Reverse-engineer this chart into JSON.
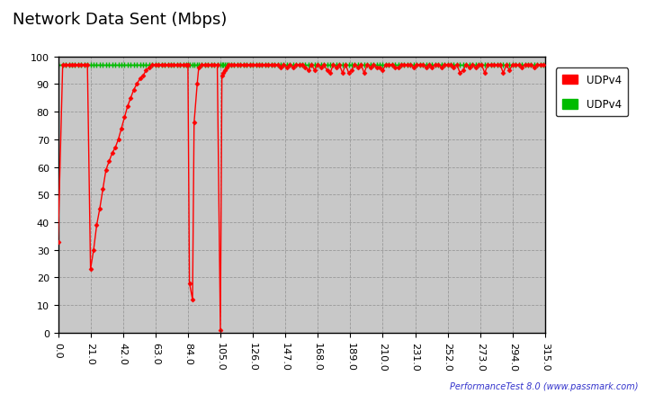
{
  "title": "Network Data Sent (Mbps)",
  "xlim": [
    0.0,
    315.0
  ],
  "ylim": [
    0,
    100
  ],
  "xticks": [
    0.0,
    21.0,
    42.0,
    63.0,
    84.0,
    105.0,
    126.0,
    147.0,
    168.0,
    189.0,
    210.0,
    231.0,
    252.0,
    273.0,
    294.0,
    315.0
  ],
  "yticks": [
    0,
    10,
    20,
    30,
    40,
    50,
    60,
    70,
    80,
    90,
    100
  ],
  "outer_bg": "#ffffff",
  "plot_bg_color": "#c8c8c8",
  "grid_color": "#aaaaaa",
  "watermark": "PerformanceTest 8.0 (www.passmark.com)",
  "legend": [
    {
      "label": "UDPv4",
      "color": "#ff0000"
    },
    {
      "label": "UDPv4",
      "color": "#00cc00"
    }
  ],
  "red_x": [
    0,
    3,
    5,
    7,
    9,
    11,
    13,
    15,
    17,
    19,
    21,
    23,
    25,
    27,
    29,
    31,
    33,
    35,
    37,
    39,
    41,
    43,
    45,
    47,
    49,
    51,
    53,
    55,
    57,
    59,
    61,
    63,
    65,
    67,
    69,
    71,
    73,
    75,
    77,
    79,
    81,
    83,
    84,
    85,
    87,
    88,
    90,
    91,
    93,
    95,
    97,
    99,
    101,
    103,
    105,
    106,
    107,
    108,
    109,
    110,
    112,
    114,
    116,
    118,
    120,
    122,
    124,
    126,
    128,
    130,
    132,
    134,
    136,
    138,
    140,
    142,
    144,
    146,
    148,
    150,
    152,
    154,
    156,
    158,
    160,
    162,
    164,
    166,
    168,
    170,
    172,
    174,
    176,
    178,
    180,
    182,
    184,
    186,
    188,
    190,
    192,
    194,
    196,
    198,
    200,
    202,
    204,
    206,
    208,
    210,
    212,
    214,
    216,
    218,
    220,
    222,
    224,
    226,
    228,
    230,
    232,
    234,
    236,
    238,
    240,
    242,
    244,
    246,
    248,
    250,
    252,
    254,
    256,
    258,
    260,
    262,
    264,
    266,
    268,
    270,
    272,
    274,
    276,
    278,
    280,
    282,
    284,
    286,
    288,
    290,
    292,
    294,
    296,
    298,
    300,
    302,
    304,
    306,
    308,
    310,
    312,
    314
  ],
  "red_y": [
    33,
    97,
    97,
    97,
    97,
    97,
    97,
    97,
    97,
    97,
    23,
    30,
    39,
    45,
    52,
    59,
    62,
    65,
    67,
    70,
    74,
    78,
    82,
    85,
    88,
    90,
    92,
    93,
    95,
    96,
    97,
    97,
    97,
    97,
    97,
    97,
    97,
    97,
    97,
    97,
    97,
    97,
    97,
    18,
    12,
    76,
    90,
    96,
    97,
    97,
    97,
    97,
    97,
    97,
    1,
    93,
    94,
    95,
    96,
    97,
    97,
    97,
    97,
    97,
    97,
    97,
    97,
    97,
    97,
    97,
    97,
    97,
    97,
    97,
    97,
    97,
    96,
    97,
    96,
    97,
    96,
    97,
    97,
    97,
    96,
    95,
    97,
    95,
    97,
    96,
    97,
    95,
    94,
    97,
    96,
    97,
    94,
    97,
    94,
    95,
    97,
    96,
    97,
    94,
    97,
    96,
    97,
    96,
    96,
    95,
    97,
    97,
    97,
    96,
    96,
    97,
    97,
    97,
    97,
    96,
    97,
    97,
    97,
    96,
    97,
    96,
    97,
    97,
    96,
    97,
    97,
    97,
    96,
    97,
    94,
    95,
    97,
    96,
    97,
    96,
    97,
    97,
    94,
    97,
    97,
    97,
    97,
    97,
    94,
    97,
    95,
    97,
    97,
    97,
    96,
    97,
    97,
    97,
    96,
    97,
    97,
    97
  ],
  "green_x": [
    0,
    3,
    5,
    7,
    9,
    11,
    13,
    15,
    17,
    19,
    21,
    23,
    25,
    27,
    29,
    31,
    33,
    35,
    37,
    39,
    41,
    43,
    45,
    47,
    49,
    51,
    53,
    55,
    57,
    59,
    61,
    63,
    65,
    67,
    69,
    71,
    73,
    75,
    77,
    79,
    81,
    83,
    84,
    85,
    87,
    88,
    90,
    91,
    93,
    95,
    97,
    99,
    101,
    103,
    105,
    106,
    107,
    108,
    109,
    110,
    112,
    114,
    116,
    118,
    120,
    122,
    124,
    126,
    128,
    130,
    132,
    134,
    136,
    138,
    140,
    142,
    144,
    146,
    148,
    150,
    152,
    154,
    156,
    158,
    160,
    162,
    164,
    166,
    168,
    170,
    172,
    174,
    176,
    178,
    180,
    182,
    184,
    186,
    188,
    190,
    192,
    194,
    196,
    198,
    200,
    202,
    204,
    206,
    208,
    210,
    212,
    214,
    216,
    218,
    220,
    222,
    224,
    226,
    228,
    230,
    232,
    234,
    236,
    238,
    240,
    242,
    244,
    246,
    248,
    250,
    252,
    254,
    256,
    258,
    260,
    262,
    264,
    266,
    268,
    270,
    272,
    274,
    276,
    278,
    280,
    282,
    284,
    286,
    288,
    290,
    292,
    294,
    296,
    298,
    300,
    302,
    304,
    306,
    308,
    310,
    312,
    314
  ],
  "green_y": [
    97,
    97,
    97,
    97,
    97,
    97,
    97,
    97,
    97,
    97,
    97,
    97,
    97,
    97,
    97,
    97,
    97,
    97,
    97,
    97,
    97,
    97,
    97,
    97,
    97,
    97,
    97,
    97,
    97,
    97,
    97,
    97,
    97,
    97,
    97,
    97,
    97,
    97,
    97,
    97,
    97,
    97,
    97,
    97,
    97,
    97,
    97,
    97,
    97,
    97,
    97,
    97,
    97,
    97,
    97,
    97,
    97,
    97,
    97,
    97,
    97,
    97,
    97,
    97,
    97,
    97,
    97,
    97,
    97,
    97,
    97,
    97,
    97,
    97,
    97,
    97,
    97,
    97,
    97,
    97,
    97,
    97,
    97,
    97,
    97,
    97,
    97,
    97,
    97,
    97,
    97,
    97,
    97,
    97,
    97,
    97,
    97,
    97,
    97,
    97,
    97,
    97,
    97,
    97,
    97,
    97,
    97,
    97,
    97,
    97,
    97,
    97,
    97,
    97,
    97,
    97,
    97,
    97,
    97,
    97,
    97,
    97,
    97,
    97,
    97,
    97,
    97,
    97,
    97,
    97,
    97,
    97,
    97,
    97,
    97,
    97,
    97,
    97,
    97,
    97,
    97,
    97,
    97,
    97,
    97,
    97,
    97,
    97,
    97,
    97,
    97,
    97,
    97,
    97,
    97,
    97,
    97,
    97,
    97,
    97,
    97,
    97
  ]
}
